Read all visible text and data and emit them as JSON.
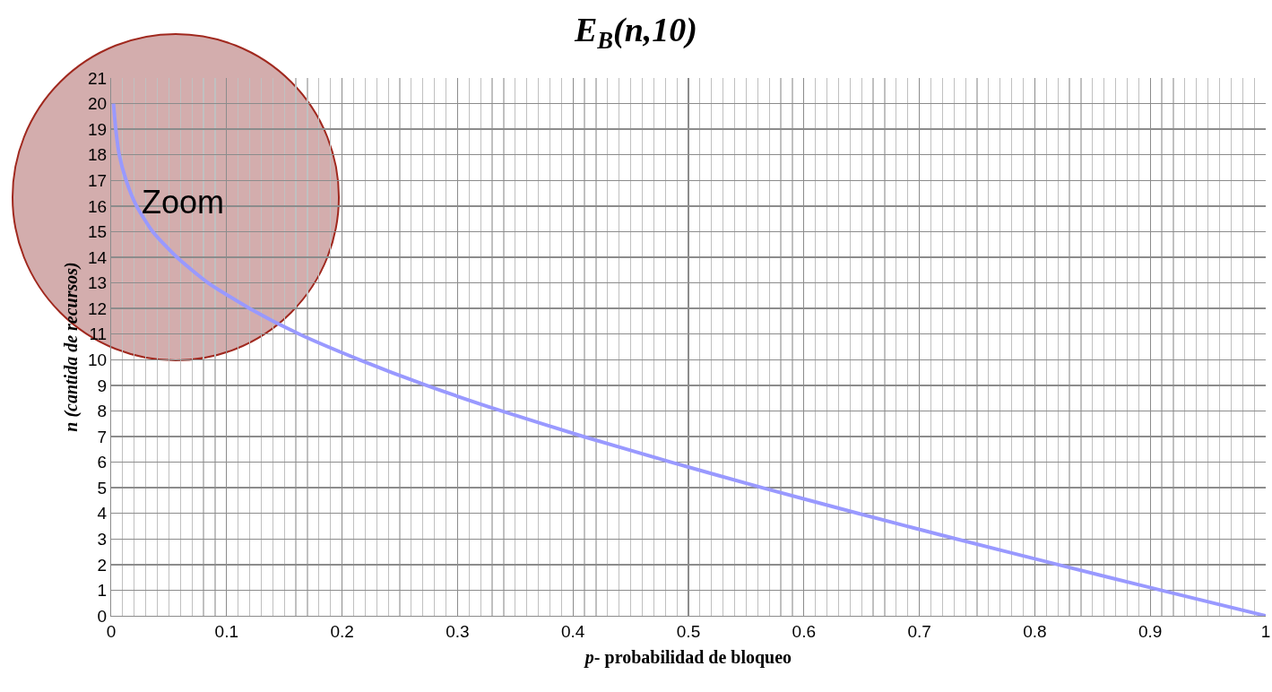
{
  "chart_data": {
    "type": "line",
    "title": "E$_{B}$(n,10)",
    "xlabel": "p- probabilidad de bloqueo",
    "ylabel": "n (cantida de recursos)",
    "annotations": [
      "Zoom"
    ],
    "x": [
      0.002,
      0.004,
      0.007,
      0.013,
      0.022,
      0.036,
      0.057,
      0.084,
      0.12,
      0.163,
      0.215,
      0.273,
      0.338,
      0.409,
      0.485,
      0.564,
      0.647,
      0.732,
      0.82,
      0.909,
      1
    ],
    "series": [
      {
        "color": "#9999ff",
        "values": [
          20,
          19,
          18,
          17,
          16,
          15,
          14,
          13,
          12,
          11,
          10,
          9,
          8,
          7,
          6,
          5,
          4,
          3,
          2,
          1,
          0
        ]
      }
    ],
    "xlim": [
      0,
      1
    ],
    "xticks": [
      0,
      0.1,
      0.2,
      0.3,
      0.4,
      0.5,
      0.6,
      0.7,
      0.8,
      0.9,
      1
    ],
    "ylim": [
      0,
      21
    ],
    "yticks": [
      0,
      1,
      2,
      3,
      4,
      5,
      6,
      7,
      8,
      9,
      10,
      11,
      12,
      13,
      14,
      15,
      16,
      17,
      18,
      19,
      20,
      21
    ],
    "grid": true,
    "marker": "none",
    "line_style": "solid"
  }
}
